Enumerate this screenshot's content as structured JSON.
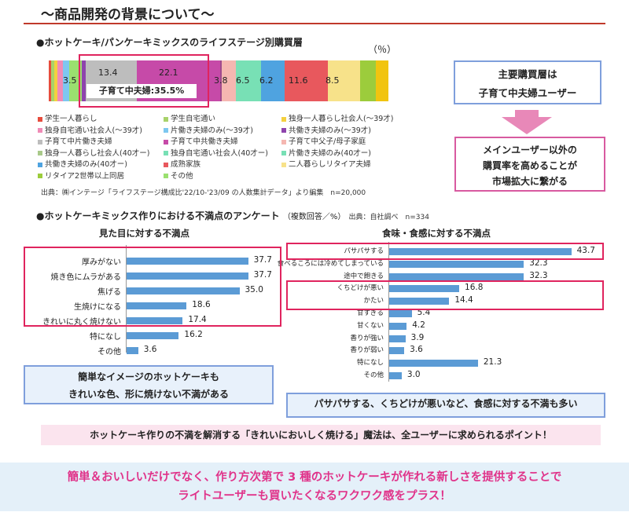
{
  "header": {
    "title": "～商品開発の背景について～"
  },
  "lifestage": {
    "heading": "●ホットケーキ/パンケーキミックスのライフステージ別購買層",
    "unit": "（％）",
    "segments": [
      {
        "value": 0.6,
        "color": "#e74c3c"
      },
      {
        "value": 0.8,
        "color": "#a8d26a"
      },
      {
        "value": 0.8,
        "color": "#f4d03f"
      },
      {
        "value": 1.6,
        "color": "#f08bb6"
      },
      {
        "value": 1.5,
        "color": "#7dc7f0"
      },
      {
        "value": 3.5,
        "color": "#9ae06f"
      },
      {
        "value": 1.0,
        "color": "#8e44ad"
      },
      {
        "value": 13.4,
        "color": "#bdbdbd"
      },
      {
        "value": 22.1,
        "color": "#c64aa8"
      },
      {
        "value": 0.4,
        "color": "#a04b8c"
      },
      {
        "value": 3.8,
        "color": "#f5b7b1"
      },
      {
        "value": 6.5,
        "color": "#78e0b5"
      },
      {
        "value": 6.2,
        "color": "#4fa3e0"
      },
      {
        "value": 11.6,
        "color": "#e8585d"
      },
      {
        "value": 8.5,
        "color": "#f7e28a"
      },
      {
        "value": 4.0,
        "color": "#9ccc3c"
      },
      {
        "value": 3.4,
        "color": "#f1c40f"
      }
    ],
    "labels": {
      "v35": "3.5",
      "v134": "13.4",
      "v221": "22.1",
      "v38": "3.8",
      "v65": "6.5",
      "v62": "6.2",
      "v116": "11.6",
      "v85": "8.5"
    },
    "highlight": "子育て中夫婦:35.5%",
    "legend": [
      {
        "text": "学生一人暮らし",
        "color": "#e74c3c"
      },
      {
        "text": "学生自宅通い",
        "color": "#a8d26a"
      },
      {
        "text": "独身一人暮らし社会人(～39才)",
        "color": "#f4d03f"
      },
      {
        "text": "独身自宅通い社会人(～39才)",
        "color": "#f08bb6"
      },
      {
        "text": "片働き夫婦のみ(～39才)",
        "color": "#7dc7f0"
      },
      {
        "text": "共働き夫婦のみ(～39才)",
        "color": "#8e44ad"
      },
      {
        "text": "子育て中片働き夫婦",
        "color": "#bdbdbd"
      },
      {
        "text": "子育て中共働き夫婦",
        "color": "#c64aa8"
      },
      {
        "text": "子育て中父子/母子家庭",
        "color": "#f5b7b1"
      },
      {
        "text": "独身一人暮らし社会人(40才ー)",
        "color": "#a9c98a"
      },
      {
        "text": "独身自宅通い社会人(40才ー)",
        "color": "#78e0b5"
      },
      {
        "text": "片働き夫婦のみ(40才ー)",
        "color": "#78e0b5"
      },
      {
        "text": "共働き夫婦のみ(40才ー)",
        "color": "#4fa3e0"
      },
      {
        "text": "成熟家族",
        "color": "#e8585d"
      },
      {
        "text": "二人暮らしリタイア夫婦",
        "color": "#f7e28a"
      },
      {
        "text": "リタイア2世帯以上同居",
        "color": "#9ccc3c"
      },
      {
        "text": "その他",
        "color": "#9ae06f"
      }
    ],
    "source": "出典：㈱インテージ「ライフステージ構成比'22/10-'23/09 の人数集計データ」より編集　n=20,000"
  },
  "side": {
    "box1_line1": "主要購買層は",
    "box1_line2": "子育て中夫婦ユーザー",
    "box2_line1": "メインユーザー以外の",
    "box2_line2": "購買率を高めることが",
    "box2_line3": "市場拡大に繋がる"
  },
  "survey": {
    "heading": "●ホットケーキミックス作りにおける不満点のアンケート",
    "heading_sub": "（複数回答／%）",
    "source": "出典：自社調べ　n=334",
    "left_title": "見た目に対する不満点",
    "right_title": "食味・食感に対する不満点",
    "left_note_line1": "簡単なイメージのホットケーキも",
    "left_note_line2": "きれいな色、形に焼けない不満がある",
    "right_note": "パサパサする、くちどけが悪いなど、食感に対する不満も多い"
  },
  "chart_data": [
    {
      "type": "bar",
      "title": "見た目に対する不満点",
      "categories": [
        "厚みがない",
        "焼き色にムラがある",
        "焦げる",
        "生焼けになる",
        "きれいに丸く焼けない",
        "特になし",
        "その他"
      ],
      "values": [
        37.7,
        37.7,
        35.0,
        18.6,
        17.4,
        16.2,
        3.6
      ],
      "value_labels": [
        "37.7",
        "37.7",
        "35.0",
        "18.6",
        "17.4",
        "16.2",
        "3.6"
      ]
    },
    {
      "type": "bar",
      "title": "食味・食感に対する不満点",
      "categories": [
        "パサパサする",
        "食べるころには冷めてしまっている",
        "途中で飽きる",
        "くちどけが悪い",
        "かたい",
        "甘すぎる",
        "甘くない",
        "香りが強い",
        "香りが弱い",
        "特になし",
        "その他"
      ],
      "values": [
        43.7,
        32.3,
        32.3,
        16.8,
        14.4,
        5.4,
        4.2,
        3.9,
        3.6,
        21.3,
        3.0
      ],
      "value_labels": [
        "43.7",
        "32.3",
        "32.3",
        "16.8",
        "14.4",
        "5.4",
        "4.2",
        "3.9",
        "3.6",
        "21.3",
        "3.0"
      ]
    }
  ],
  "footer": {
    "pink_band": "ホットケーキ作りの不満を解消する「きれいにおいしく焼ける」魔法は、全ユーザーに求められるポイント！",
    "bottom_line1": "簡単＆おいしいだけでなく、作り方次第で 3 種のホットケーキが作れる新しさを提供することで",
    "bottom_line2": "ライトユーザーも買いたくなるワクワク感をプラス！"
  }
}
